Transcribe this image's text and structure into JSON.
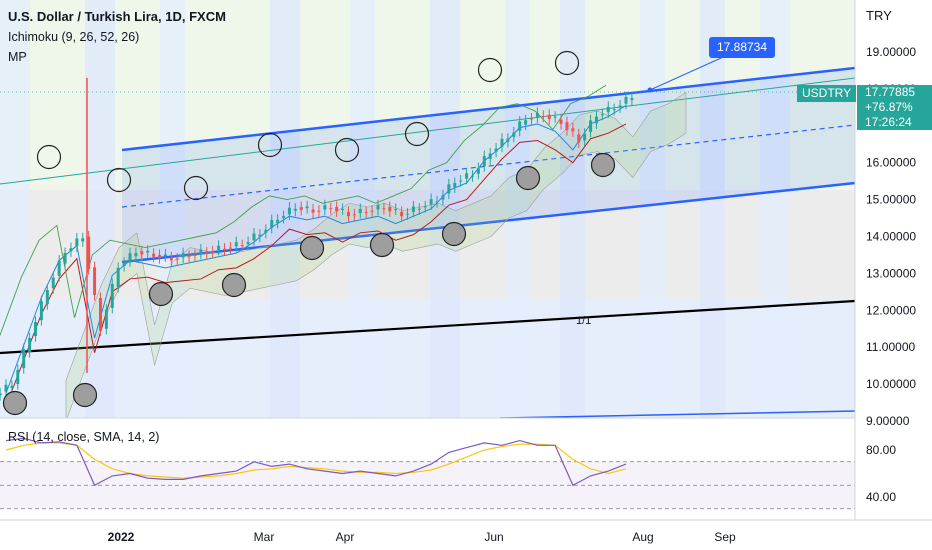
{
  "header": {
    "title": "U.S. Dollar / Turkish Lira, 1D, FXCM",
    "indicator_ichimoku": "Ichimoku (9, 26, 52, 26)",
    "indicator_mp": "MP",
    "currency": "TRY"
  },
  "price_tag": {
    "symbol": "USDTRY",
    "price": "17.77885",
    "change": "+76.87%",
    "countdown": "17:26:24"
  },
  "callout": {
    "value": "17.88734"
  },
  "annotation": {
    "label": "1/1"
  },
  "rsi_panel": {
    "label": "RSI (14, close, SMA, 14, 2)"
  },
  "colors": {
    "up": "#26a69a",
    "down": "#ef5350",
    "channel": "#2962ff",
    "ichimoku_base": "#b71c1c",
    "ichimoku_conv": "#1e88e5",
    "rsi": "#7e57c2",
    "rsi_ma": "#f9c80e"
  },
  "chart_data": [
    {
      "type": "line",
      "title": "U.S. Dollar / Turkish Lira, 1D, FXCM",
      "xlabel": "",
      "ylabel": "TRY",
      "ylim": [
        8.0,
        19.5
      ],
      "x_ticks": [
        "2022",
        "Mar",
        "Apr",
        "Jun",
        "Aug",
        "Sep"
      ],
      "y_ticks": [
        9,
        10,
        11,
        12,
        13,
        14,
        15,
        16,
        17,
        18,
        19
      ],
      "x": [
        "2021-11-15",
        "2021-11-22",
        "2021-11-29",
        "2021-12-06",
        "2021-12-13",
        "2021-12-20",
        "2021-12-27",
        "2022-01-03",
        "2022-01-10",
        "2022-01-17",
        "2022-01-24",
        "2022-01-31",
        "2022-02-07",
        "2022-02-14",
        "2022-02-21",
        "2022-02-28",
        "2022-03-07",
        "2022-03-14",
        "2022-03-21",
        "2022-03-28",
        "2022-04-04",
        "2022-04-11",
        "2022-04-18",
        "2022-04-25",
        "2022-05-02",
        "2022-05-09",
        "2022-05-16",
        "2022-05-23",
        "2022-05-30",
        "2022-06-06",
        "2022-06-13",
        "2022-06-20",
        "2022-06-27",
        "2022-07-04",
        "2022-07-11",
        "2022-07-18"
      ],
      "series": [
        {
          "name": "",
          "values": [
            10.0,
            11.3,
            12.6,
            13.6,
            14.0,
            11.5,
            13.2,
            13.6,
            13.5,
            13.4,
            13.5,
            13.6,
            13.7,
            13.8,
            14.1,
            14.5,
            14.8,
            14.7,
            14.8,
            14.6,
            14.7,
            14.8,
            14.6,
            14.8,
            15.0,
            15.5,
            15.7,
            16.3,
            16.7,
            17.2,
            17.3,
            17.1,
            16.6,
            17.3,
            17.5,
            17.8
          ]
        }
      ],
      "grid": false,
      "legend": "none"
    },
    {
      "type": "line",
      "title": "RSI (14, close, SMA, 14, 2)",
      "ylim": [
        30,
        95
      ],
      "y_ticks": [
        40,
        80
      ],
      "series": [
        {
          "name": "",
          "values": [
            88,
            90,
            86,
            87,
            84,
            50,
            58,
            60,
            56,
            55,
            55,
            58,
            60,
            62,
            70,
            66,
            68,
            64,
            62,
            60,
            62,
            60,
            58,
            62,
            68,
            78,
            82,
            86,
            84,
            88,
            84,
            84,
            50,
            58,
            62,
            68
          ]
        },
        {
          "name": "",
          "values": [
            80,
            84,
            86,
            86,
            84,
            72,
            64,
            60,
            58,
            57,
            56,
            57,
            58,
            60,
            63,
            64,
            66,
            65,
            64,
            62,
            61,
            61,
            60,
            61,
            63,
            68,
            74,
            80,
            83,
            85,
            85,
            84,
            72,
            64,
            60,
            64
          ]
        }
      ]
    }
  ]
}
